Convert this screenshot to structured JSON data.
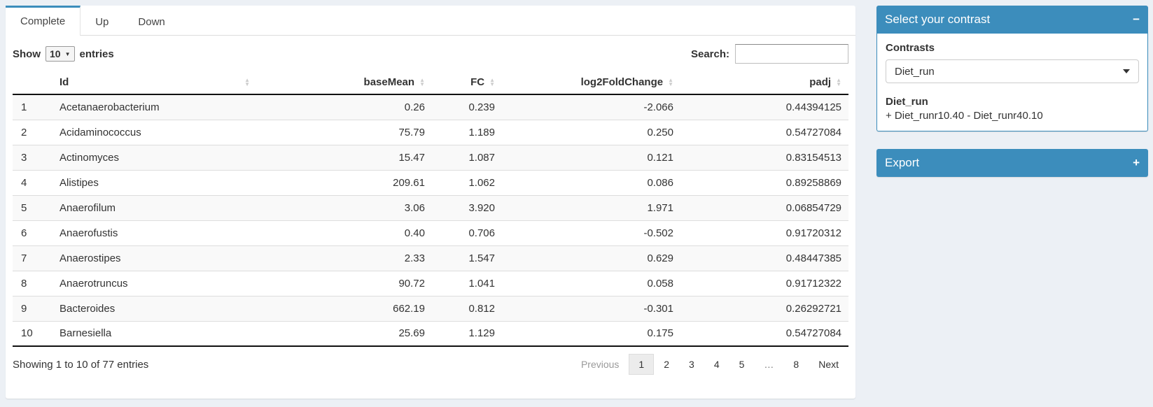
{
  "colors": {
    "accent": "#3c8dbc",
    "page_bg": "#ecf0f5",
    "stripe": "#f9f9f9",
    "table_border_dark": "#111"
  },
  "tabs": [
    {
      "label": "Complete",
      "active": true
    },
    {
      "label": "Up",
      "active": false
    },
    {
      "label": "Down",
      "active": false
    }
  ],
  "table_controls": {
    "show_label": "Show",
    "page_size": "10",
    "entries_label": "entries",
    "select_caret": "▼",
    "search_label": "Search:",
    "search_value": ""
  },
  "table": {
    "sort_up": "▲",
    "sort_down": "▼",
    "columns": [
      {
        "label": ""
      },
      {
        "label": "Id"
      },
      {
        "label": "baseMean"
      },
      {
        "label": "FC"
      },
      {
        "label": "log2FoldChange"
      },
      {
        "label": "padj"
      }
    ],
    "rows": [
      {
        "num": "1",
        "id": "Acetanaerobacterium",
        "baseMean": "0.26",
        "fc": "0.239",
        "log2fc": "-2.066",
        "padj": "0.44394125"
      },
      {
        "num": "2",
        "id": "Acidaminococcus",
        "baseMean": "75.79",
        "fc": "1.189",
        "log2fc": "0.250",
        "padj": "0.54727084"
      },
      {
        "num": "3",
        "id": "Actinomyces",
        "baseMean": "15.47",
        "fc": "1.087",
        "log2fc": "0.121",
        "padj": "0.83154513"
      },
      {
        "num": "4",
        "id": "Alistipes",
        "baseMean": "209.61",
        "fc": "1.062",
        "log2fc": "0.086",
        "padj": "0.89258869"
      },
      {
        "num": "5",
        "id": "Anaerofilum",
        "baseMean": "3.06",
        "fc": "3.920",
        "log2fc": "1.971",
        "padj": "0.06854729"
      },
      {
        "num": "6",
        "id": "Anaerofustis",
        "baseMean": "0.40",
        "fc": "0.706",
        "log2fc": "-0.502",
        "padj": "0.91720312"
      },
      {
        "num": "7",
        "id": "Anaerostipes",
        "baseMean": "2.33",
        "fc": "1.547",
        "log2fc": "0.629",
        "padj": "0.48447385"
      },
      {
        "num": "8",
        "id": "Anaerotruncus",
        "baseMean": "90.72",
        "fc": "1.041",
        "log2fc": "0.058",
        "padj": "0.91712322"
      },
      {
        "num": "9",
        "id": "Bacteroides",
        "baseMean": "662.19",
        "fc": "0.812",
        "log2fc": "-0.301",
        "padj": "0.26292721"
      },
      {
        "num": "10",
        "id": "Barnesiella",
        "baseMean": "25.69",
        "fc": "1.129",
        "log2fc": "0.175",
        "padj": "0.54727084"
      }
    ]
  },
  "footer": {
    "info": "Showing 1 to 10 of 77 entries",
    "pagination": [
      {
        "label": "Previous",
        "state": "disabled",
        "name": "previous"
      },
      {
        "label": "1",
        "state": "active",
        "name": "page-1"
      },
      {
        "label": "2",
        "state": "normal",
        "name": "page-2"
      },
      {
        "label": "3",
        "state": "normal",
        "name": "page-3"
      },
      {
        "label": "4",
        "state": "normal",
        "name": "page-4"
      },
      {
        "label": "5",
        "state": "normal",
        "name": "page-5"
      },
      {
        "label": "…",
        "state": "ellipsis",
        "name": "ellipsis"
      },
      {
        "label": "8",
        "state": "normal",
        "name": "page-8"
      },
      {
        "label": "Next",
        "state": "normal",
        "name": "next"
      }
    ]
  },
  "sidebar": {
    "contrast_box": {
      "title": "Select your contrast",
      "collapse_icon": "−",
      "contrasts_label": "Contrasts",
      "selected_contrast": "Diet_run",
      "contrast_name": "Diet_run",
      "contrast_formula": "+ Diet_runr10.40 - Diet_runr40.10"
    },
    "export_box": {
      "title": "Export",
      "expand_icon": "+"
    }
  }
}
